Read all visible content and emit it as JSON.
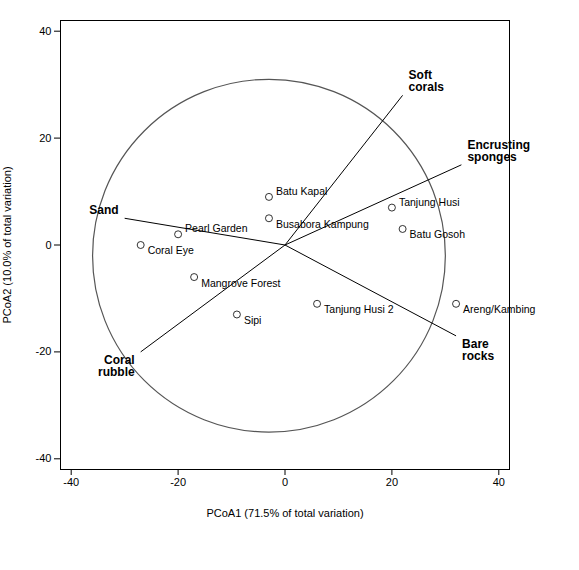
{
  "chart_data": {
    "type": "biplot",
    "xlabel": "PCoA1 (71.5% of total variation)",
    "ylabel": "PCoA2 (10.0% of total variation)",
    "xlim": [
      -42,
      42
    ],
    "ylim": [
      -42,
      42
    ],
    "xticks": [
      -40,
      -20,
      0,
      20,
      40
    ],
    "yticks": [
      -40,
      -20,
      0,
      20,
      40
    ],
    "grid": false,
    "circle": {
      "cx": -3,
      "cy": -2,
      "r": 33,
      "color": "#555555"
    },
    "points": [
      {
        "name": "Batu Kapal",
        "x": -3,
        "y": 9
      },
      {
        "name": "Busabora Kampung",
        "x": -3,
        "y": 5
      },
      {
        "name": "Tanjung Husi",
        "x": 20,
        "y": 7
      },
      {
        "name": "Batu Gosoh",
        "x": 22,
        "y": 3
      },
      {
        "name": "Pearl Garden",
        "x": -20,
        "y": 2
      },
      {
        "name": "Coral Eye",
        "x": -27,
        "y": 0
      },
      {
        "name": "Mangrove Forest",
        "x": -17,
        "y": -6
      },
      {
        "name": "Sipi",
        "x": -9,
        "y": -13
      },
      {
        "name": "Tanjung Husi 2",
        "x": 6,
        "y": -11
      },
      {
        "name": "Areng/Kambing",
        "x": 32,
        "y": -11
      }
    ],
    "vectors": [
      {
        "label": "Soft\ncorals",
        "x1": 0,
        "y1": 0,
        "x2": 22,
        "y2": 28
      },
      {
        "label": "Encrusting\nsponges",
        "x1": 0,
        "y1": 0,
        "x2": 33,
        "y2": 15
      },
      {
        "label": "Sand",
        "x1": 0,
        "y1": 0,
        "x2": -30,
        "y2": 5
      },
      {
        "label": "Coral\nrubble",
        "x1": 0,
        "y1": 0,
        "x2": -27,
        "y2": -20
      },
      {
        "label": "Bare\nrocks",
        "x1": 0,
        "y1": 0,
        "x2": 32,
        "y2": -17
      }
    ]
  }
}
